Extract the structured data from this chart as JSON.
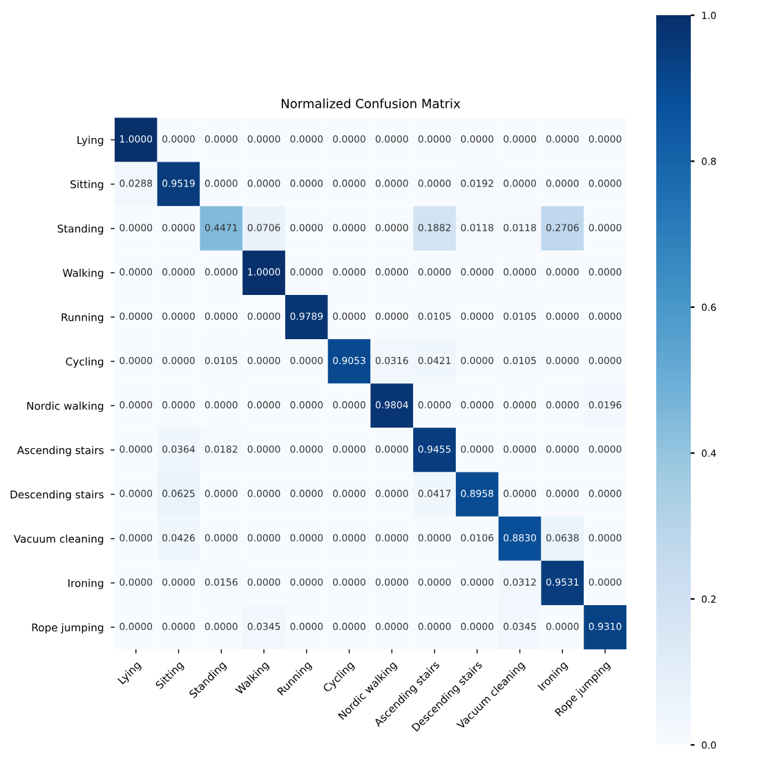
{
  "chart_data": {
    "type": "heatmap",
    "title": "Normalized Confusion Matrix",
    "categories": [
      "Lying",
      "Sitting",
      "Standing",
      "Walking",
      "Running",
      "Cycling",
      "Nordic walking",
      "Ascending stairs",
      "Descending stairs",
      "Vacuum cleaning",
      "Ironing",
      "Rope jumping"
    ],
    "y_categories": [
      "Lying",
      "Sitting",
      "Standing",
      "Walking",
      "Running",
      "Cycling",
      "Nordic walking",
      "Ascending stairs",
      "Descending stairs",
      "Vacuum cleaning",
      "Ironing",
      "Rope jumping"
    ],
    "cells": [
      [
        1.0,
        0,
        0,
        0,
        0,
        0,
        0,
        0,
        0,
        0,
        0,
        0
      ],
      [
        0.0288,
        0.9519,
        0,
        0,
        0,
        0,
        0,
        0,
        0.0192,
        0,
        0,
        0
      ],
      [
        0,
        0,
        0.4471,
        0.0706,
        0,
        0,
        0,
        0.1882,
        0.0118,
        0.0118,
        0.2706,
        0
      ],
      [
        0,
        0,
        0,
        1.0,
        0,
        0,
        0,
        0,
        0,
        0,
        0,
        0
      ],
      [
        0,
        0,
        0,
        0,
        0.9789,
        0,
        0,
        0.0105,
        0,
        0.0105,
        0,
        0
      ],
      [
        0,
        0,
        0.0105,
        0,
        0,
        0.9053,
        0.0316,
        0.0421,
        0,
        0.0105,
        0,
        0
      ],
      [
        0,
        0,
        0,
        0,
        0,
        0,
        0.9804,
        0,
        0,
        0,
        0,
        0.0196
      ],
      [
        0,
        0.0364,
        0.0182,
        0,
        0,
        0,
        0,
        0.9455,
        0,
        0,
        0,
        0
      ],
      [
        0,
        0.0625,
        0,
        0,
        0,
        0,
        0,
        0.0417,
        0.8958,
        0,
        0,
        0
      ],
      [
        0,
        0.0426,
        0,
        0,
        0,
        0,
        0,
        0,
        0.0106,
        0.883,
        0.0638,
        0
      ],
      [
        0,
        0,
        0.0156,
        0,
        0,
        0,
        0,
        0,
        0,
        0.0312,
        0.9531,
        0
      ],
      [
        0,
        0,
        0,
        0.0345,
        0,
        0,
        0,
        0,
        0,
        0.0345,
        0,
        0.931
      ]
    ],
    "cell_labels": [
      [
        "1.0000",
        "0.0000",
        "0.0000",
        "0.0000",
        "0.0000",
        "0.0000",
        "0.0000",
        "0.0000",
        "0.0000",
        "0.0000",
        "0.0000",
        "0.0000"
      ],
      [
        "0.0288",
        "0.9519",
        "0.0000",
        "0.0000",
        "0.0000",
        "0.0000",
        "0.0000",
        "0.0000",
        "0.0192",
        "0.0000",
        "0.0000",
        "0.0000"
      ],
      [
        "0.0000",
        "0.0000",
        "0.4471",
        "0.0706",
        "0.0000",
        "0.0000",
        "0.0000",
        "0.1882",
        "0.0118",
        "0.0118",
        "0.2706",
        "0.0000"
      ],
      [
        "0.0000",
        "0.0000",
        "0.0000",
        "1.0000",
        "0.0000",
        "0.0000",
        "0.0000",
        "0.0000",
        "0.0000",
        "0.0000",
        "0.0000",
        "0.0000"
      ],
      [
        "0.0000",
        "0.0000",
        "0.0000",
        "0.0000",
        "0.9789",
        "0.0000",
        "0.0000",
        "0.0105",
        "0.0000",
        "0.0105",
        "0.0000",
        "0.0000"
      ],
      [
        "0.0000",
        "0.0000",
        "0.0105",
        "0.0000",
        "0.0000",
        "0.9053",
        "0.0316",
        "0.0421",
        "0.0000",
        "0.0105",
        "0.0000",
        "0.0000"
      ],
      [
        "0.0000",
        "0.0000",
        "0.0000",
        "0.0000",
        "0.0000",
        "0.0000",
        "0.9804",
        "0.0000",
        "0.0000",
        "0.0000",
        "0.0000",
        "0.0196"
      ],
      [
        "0.0000",
        "0.0364",
        "0.0182",
        "0.0000",
        "0.0000",
        "0.0000",
        "0.0000",
        "0.9455",
        "0.0000",
        "0.0000",
        "0.0000",
        "0.0000"
      ],
      [
        "0.0000",
        "0.0625",
        "0.0000",
        "0.0000",
        "0.0000",
        "0.0000",
        "0.0000",
        "0.0417",
        "0.8958",
        "0.0000",
        "0.0000",
        "0.0000"
      ],
      [
        "0.0000",
        "0.0426",
        "0.0000",
        "0.0000",
        "0.0000",
        "0.0000",
        "0.0000",
        "0.0000",
        "0.0106",
        "0.8830",
        "0.0638",
        "0.0000"
      ],
      [
        "0.0000",
        "0.0000",
        "0.0156",
        "0.0000",
        "0.0000",
        "0.0000",
        "0.0000",
        "0.0000",
        "0.0000",
        "0.0312",
        "0.9531",
        "0.0000"
      ],
      [
        "0.0000",
        "0.0000",
        "0.0000",
        "0.0345",
        "0.0000",
        "0.0000",
        "0.0000",
        "0.0000",
        "0.0000",
        "0.0345",
        "0.0000",
        "0.9310"
      ]
    ],
    "clim": [
      0,
      1
    ],
    "cticks": [
      {
        "value": 0,
        "label": "0.0"
      },
      0.2,
      0.4,
      0.6,
      0.8,
      {
        "value": 1,
        "label": "1.0"
      }
    ],
    "grid": false
  }
}
